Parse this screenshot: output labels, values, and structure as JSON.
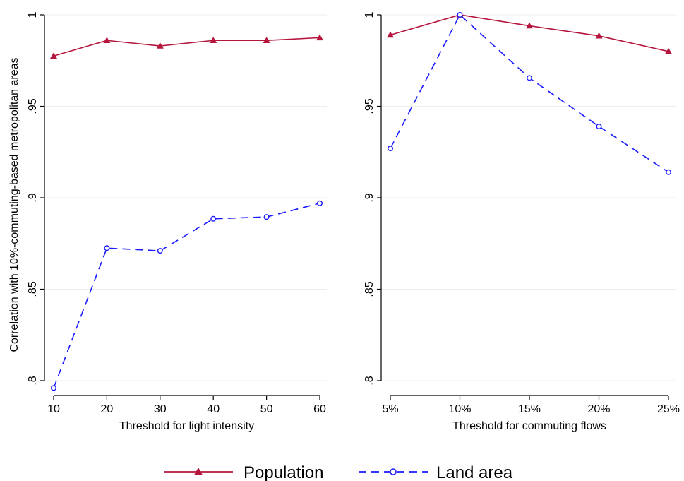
{
  "chart_data": [
    {
      "type": "line",
      "xlabel": "Threshold for light intensity",
      "ylabel": "Correlation with 10%-commuting-based metropolitan areas",
      "x": [
        10,
        20,
        30,
        40,
        50,
        60
      ],
      "x_tick_labels": [
        "10",
        "20",
        "30",
        "40",
        "50",
        "60"
      ],
      "ylim": [
        0.8,
        1.0
      ],
      "y_ticks": [
        0.8,
        0.85,
        0.9,
        0.95,
        1.0
      ],
      "y_tick_labels": [
        ".8",
        ".85",
        ".9",
        ".95",
        "1"
      ],
      "grid": true,
      "series": [
        {
          "name": "Population",
          "values": [
            0.9775,
            0.986,
            0.983,
            0.986,
            0.986,
            0.9875
          ]
        },
        {
          "name": "Land area",
          "values": [
            0.796,
            0.8725,
            0.871,
            0.8885,
            0.8895,
            0.897
          ]
        }
      ]
    },
    {
      "type": "line",
      "xlabel": "Threshold for commuting flows",
      "ylabel": "",
      "x": [
        5,
        10,
        15,
        20,
        25
      ],
      "x_tick_labels": [
        "5%",
        "10%",
        "15%",
        "20%",
        "25%"
      ],
      "ylim": [
        0.8,
        1.0
      ],
      "y_ticks": [
        0.8,
        0.85,
        0.9,
        0.95,
        1.0
      ],
      "y_tick_labels": [
        ".8",
        ".85",
        ".9",
        ".95",
        "1"
      ],
      "grid": true,
      "series": [
        {
          "name": "Population",
          "values": [
            0.989,
            1.0,
            0.994,
            0.9885,
            0.98
          ]
        },
        {
          "name": "Land area",
          "values": [
            0.927,
            1.0,
            0.9655,
            0.939,
            0.914
          ]
        }
      ]
    }
  ],
  "legend": {
    "placement": "bottom",
    "items": [
      {
        "label": "Population",
        "color": "#b5153d",
        "marker": "triangle",
        "style": "solid"
      },
      {
        "label": "Land area",
        "color": "#1a1aff",
        "marker": "circle",
        "style": "dashed"
      }
    ]
  },
  "colors": {
    "population": "#b5153d",
    "land_area": "#1a1aff",
    "grid": "#e8eef2",
    "axis": "#000000"
  }
}
